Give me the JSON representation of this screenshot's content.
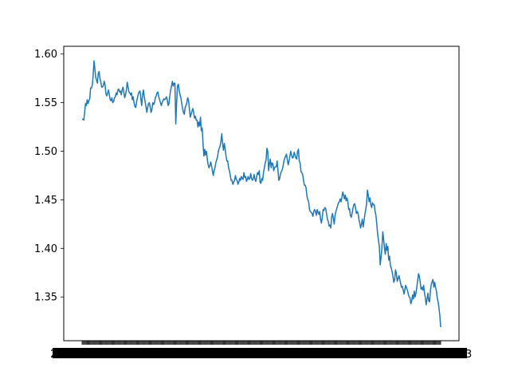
{
  "chart_data": {
    "type": "line",
    "title": "",
    "xlabel": "",
    "ylabel": "",
    "ylim": [
      1.305,
      1.608
    ],
    "grid": false,
    "legend": "none",
    "x_axis": {
      "description": "dense categorical date axis; tick labels overlap into an unreadable band",
      "first_tick_label_fragment": "2",
      "last_tick_label_fragment": "3"
    },
    "y_ticks": [
      "1.35",
      "1.40",
      "1.45",
      "1.50",
      "1.55",
      "1.60"
    ],
    "colors": {
      "line": "#1f77b4",
      "axes": "#000000"
    },
    "series": [
      {
        "values": [
          1.533,
          1.533,
          1.532,
          1.54,
          1.549,
          1.547,
          1.553,
          1.549,
          1.552,
          1.554,
          1.565,
          1.565,
          1.568,
          1.578,
          1.593,
          1.585,
          1.576,
          1.573,
          1.57,
          1.58,
          1.582,
          1.575,
          1.571,
          1.566,
          1.566,
          1.568,
          1.572,
          1.568,
          1.559,
          1.557,
          1.56,
          1.563,
          1.558,
          1.553,
          1.552,
          1.555,
          1.55,
          1.551,
          1.555,
          1.556,
          1.56,
          1.558,
          1.563,
          1.564,
          1.561,
          1.562,
          1.558,
          1.563,
          1.566,
          1.561,
          1.555,
          1.558,
          1.563,
          1.571,
          1.566,
          1.561,
          1.56,
          1.558,
          1.56,
          1.553,
          1.556,
          1.55,
          1.546,
          1.545,
          1.551,
          1.555,
          1.559,
          1.561,
          1.562,
          1.554,
          1.547,
          1.558,
          1.563,
          1.556,
          1.551,
          1.546,
          1.54,
          1.545,
          1.549,
          1.55,
          1.545,
          1.54,
          1.543,
          1.55,
          1.548,
          1.55,
          1.555,
          1.557,
          1.56,
          1.561,
          1.556,
          1.553,
          1.55,
          1.547,
          1.55,
          1.552,
          1.554,
          1.553,
          1.554,
          1.556,
          1.553,
          1.547,
          1.549,
          1.557,
          1.563,
          1.567,
          1.572,
          1.567,
          1.57,
          1.57,
          1.528,
          1.55,
          1.567,
          1.569,
          1.563,
          1.558,
          1.555,
          1.549,
          1.544,
          1.54,
          1.538,
          1.545,
          1.547,
          1.55,
          1.555,
          1.552,
          1.544,
          1.535,
          1.538,
          1.541,
          1.544,
          1.54,
          1.534,
          1.536,
          1.532,
          1.532,
          1.525,
          1.53,
          1.526,
          1.535,
          1.521,
          1.524,
          1.508,
          1.495,
          1.502,
          1.496,
          1.5,
          1.492,
          1.486,
          1.483,
          1.485,
          1.489,
          1.485,
          1.48,
          1.475,
          1.48,
          1.483,
          1.488,
          1.491,
          1.494,
          1.5,
          1.503,
          1.505,
          1.51,
          1.518,
          1.508,
          1.501,
          1.508,
          1.502,
          1.495,
          1.49,
          1.49,
          1.483,
          1.48,
          1.475,
          1.47,
          1.47,
          1.466,
          1.468,
          1.47,
          1.475,
          1.471,
          1.47,
          1.466,
          1.468,
          1.472,
          1.47,
          1.474,
          1.472,
          1.471,
          1.478,
          1.473,
          1.474,
          1.469,
          1.471,
          1.474,
          1.471,
          1.472,
          1.477,
          1.472,
          1.47,
          1.472,
          1.476,
          1.471,
          1.469,
          1.474,
          1.478,
          1.476,
          1.48,
          1.468,
          1.467,
          1.472,
          1.47,
          1.478,
          1.483,
          1.488,
          1.491,
          1.503,
          1.5,
          1.48,
          1.487,
          1.492,
          1.483,
          1.488,
          1.487,
          1.48,
          1.483,
          1.484,
          1.484,
          1.49,
          1.48,
          1.47,
          1.472,
          1.477,
          1.479,
          1.481,
          1.485,
          1.49,
          1.493,
          1.495,
          1.497,
          1.491,
          1.486,
          1.49,
          1.495,
          1.5,
          1.496,
          1.493,
          1.494,
          1.499,
          1.496,
          1.493,
          1.492,
          1.5,
          1.502,
          1.49,
          1.488,
          1.479,
          1.478,
          1.476,
          1.47,
          1.465,
          1.465,
          1.462,
          1.454,
          1.45,
          1.448,
          1.44,
          1.438,
          1.437,
          1.436,
          1.433,
          1.438,
          1.44,
          1.438,
          1.434,
          1.44,
          1.437,
          1.435,
          1.438,
          1.43,
          1.426,
          1.432,
          1.44,
          1.439,
          1.442,
          1.441,
          1.436,
          1.43,
          1.428,
          1.423,
          1.424,
          1.421,
          1.432,
          1.436,
          1.431,
          1.425,
          1.434,
          1.438,
          1.441,
          1.444,
          1.447,
          1.448,
          1.451,
          1.448,
          1.452,
          1.458,
          1.455,
          1.451,
          1.455,
          1.449,
          1.452,
          1.448,
          1.44,
          1.441,
          1.434,
          1.432,
          1.436,
          1.441,
          1.445,
          1.446,
          1.442,
          1.436,
          1.438,
          1.436,
          1.43,
          1.426,
          1.421,
          1.425,
          1.43,
          1.422,
          1.428,
          1.435,
          1.44,
          1.446,
          1.46,
          1.455,
          1.448,
          1.452,
          1.445,
          1.442,
          1.447,
          1.445,
          1.445,
          1.438,
          1.434,
          1.425,
          1.415,
          1.408,
          1.402,
          1.383,
          1.391,
          1.4,
          1.417,
          1.41,
          1.4,
          1.394,
          1.405,
          1.398,
          1.402,
          1.388,
          1.392,
          1.382,
          1.38,
          1.376,
          1.371,
          1.365,
          1.368,
          1.378,
          1.374,
          1.366,
          1.369,
          1.372,
          1.368,
          1.364,
          1.36,
          1.361,
          1.357,
          1.353,
          1.358,
          1.362,
          1.359,
          1.357,
          1.353,
          1.35,
          1.349,
          1.343,
          1.346,
          1.352,
          1.348,
          1.356,
          1.35,
          1.354,
          1.36,
          1.367,
          1.374,
          1.371,
          1.365,
          1.358,
          1.36,
          1.357,
          1.362,
          1.354,
          1.349,
          1.342,
          1.348,
          1.354,
          1.346,
          1.345,
          1.357,
          1.363,
          1.366,
          1.368,
          1.36,
          1.365,
          1.36,
          1.356,
          1.349,
          1.345,
          1.339,
          1.331,
          1.319
        ]
      }
    ]
  }
}
